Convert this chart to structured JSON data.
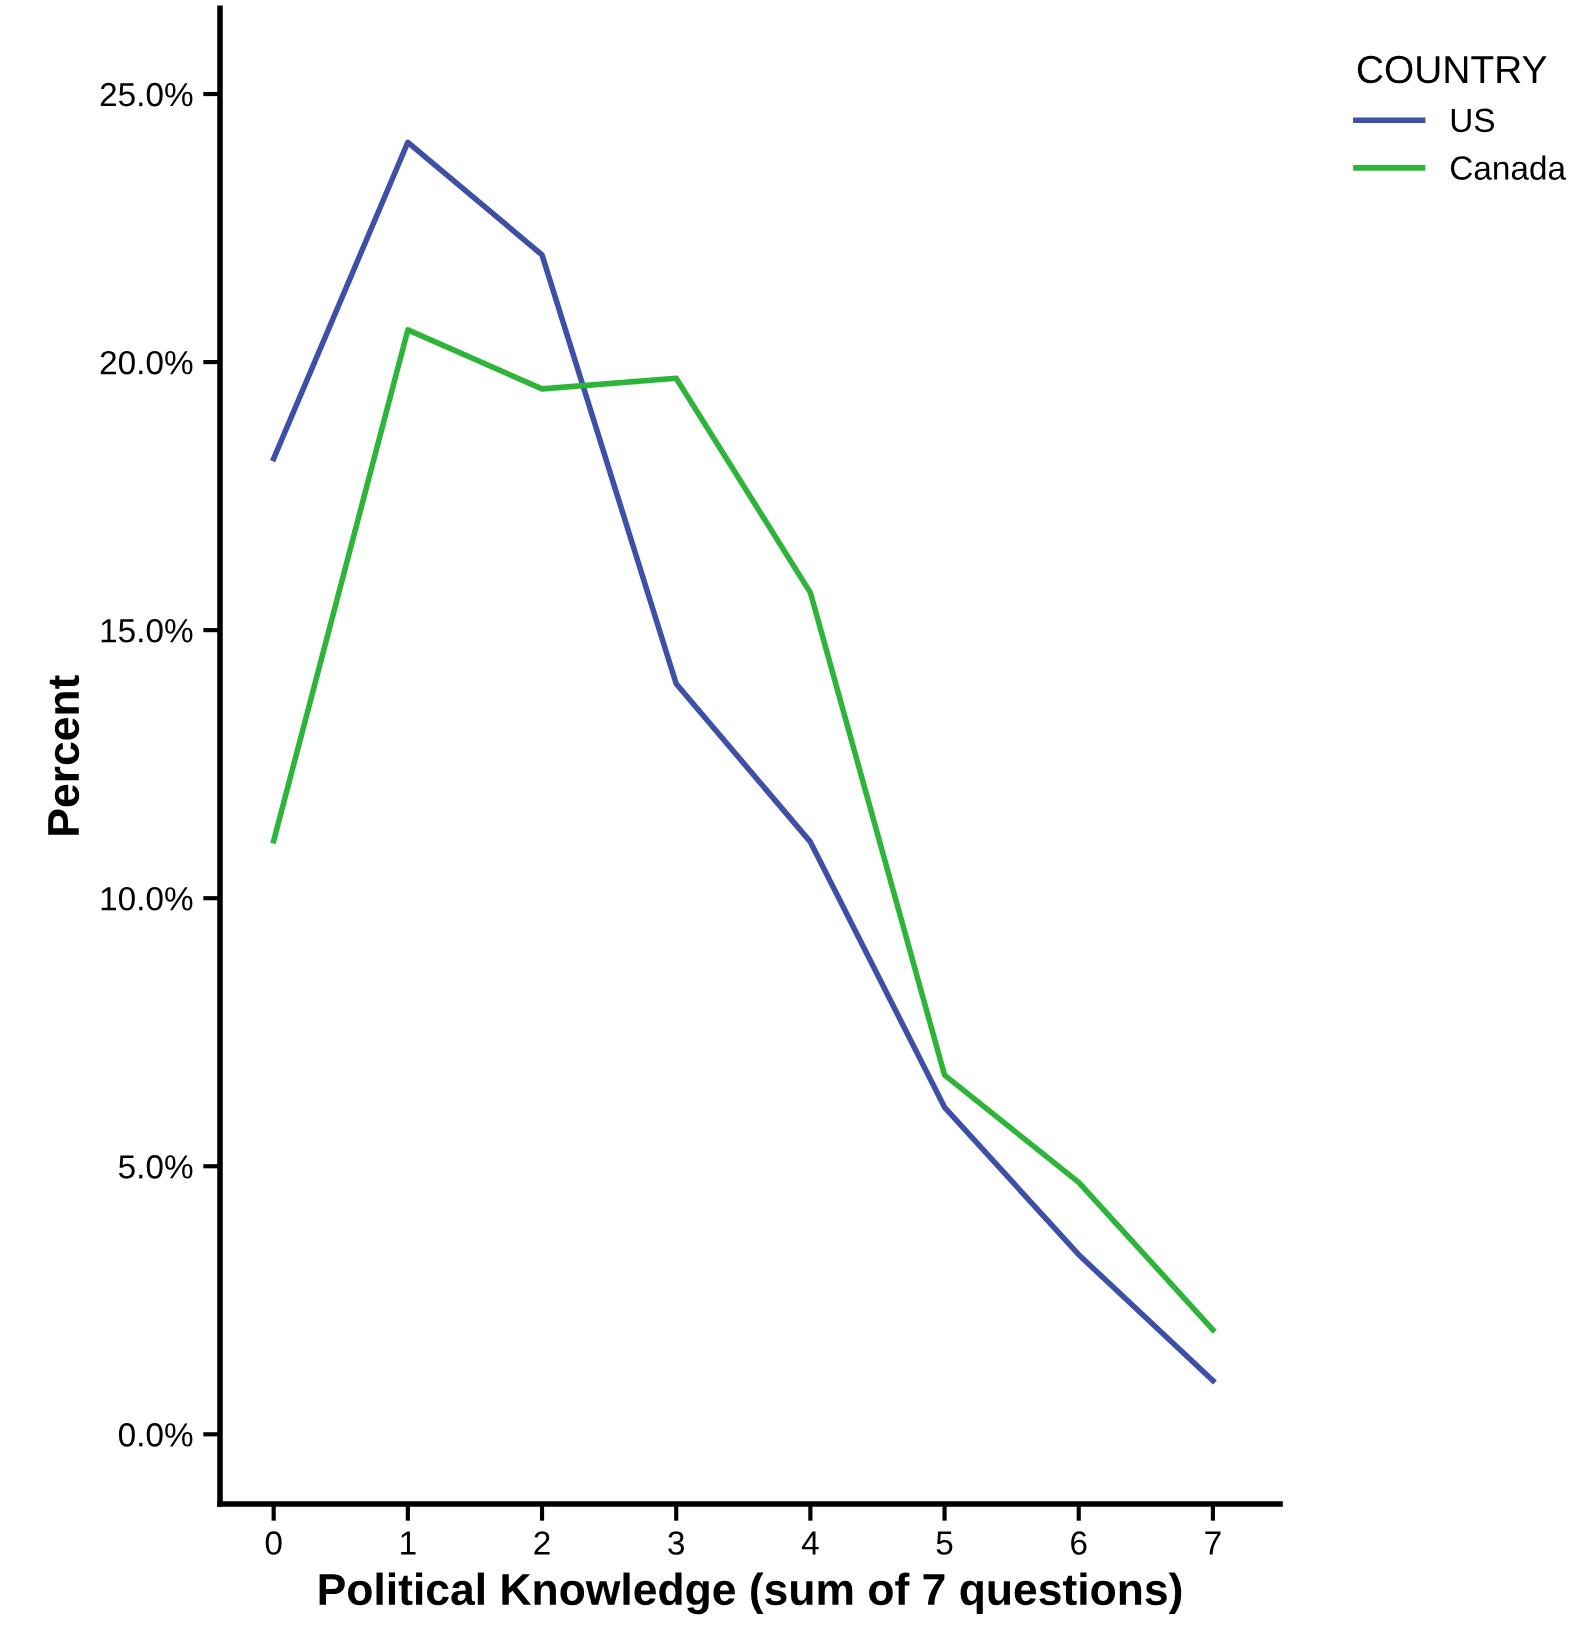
{
  "chart_data": {
    "type": "line",
    "xlabel": "Political Knowledge (sum of 7 questions)",
    "ylabel": "Percent",
    "legend_title": "COUNTRY",
    "x": [
      0,
      1,
      2,
      3,
      4,
      5,
      6,
      7
    ],
    "series": [
      {
        "name": "US",
        "color": "#3e4fa8",
        "values": [
          18.2,
          24.1,
          22.0,
          14.0,
          11.05,
          6.1,
          3.35,
          1.0
        ]
      },
      {
        "name": "Canada",
        "color": "#2db53a",
        "values": [
          11.07,
          20.6,
          19.5,
          19.7,
          15.7,
          6.7,
          4.7,
          1.95
        ]
      }
    ],
    "xlim": [
      -0.4,
      7.5
    ],
    "ylim": [
      -1.3,
      26.6
    ],
    "xticks": [
      0,
      1,
      2,
      3,
      4,
      5,
      6,
      7
    ],
    "yticks": [
      {
        "value": 0,
        "label": "0.0%"
      },
      {
        "value": 5,
        "label": "5.0%"
      },
      {
        "value": 10,
        "label": "10.0%"
      },
      {
        "value": 15,
        "label": "15.0%"
      },
      {
        "value": 20,
        "label": "20.0%"
      },
      {
        "value": 25,
        "label": "25.0%"
      }
    ],
    "grid": false,
    "legend": "top right",
    "marker": "none",
    "line_style": "solid"
  }
}
